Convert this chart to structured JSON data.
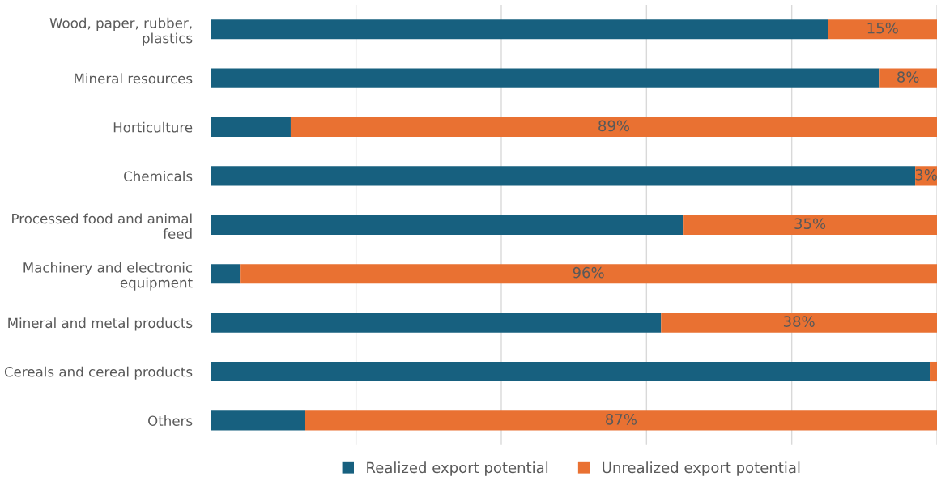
{
  "chart_data": {
    "type": "bar",
    "orientation": "horizontal",
    "stacked": true,
    "categories": [
      "Wood, paper, rubber,\nplastics",
      "Mineral resources",
      "Horticulture",
      "Chemicals",
      "Processed food and animal\nfeed",
      "Machinery and electronic\nequipment",
      "Mineral and metal products",
      "Cereals and cereal products",
      "Others"
    ],
    "series": [
      {
        "name": "Realized export potential",
        "color": "#17607f",
        "values": [
          85,
          92,
          11,
          97,
          65,
          4,
          62,
          99,
          13
        ]
      },
      {
        "name": "Unrealized export potential",
        "color": "#e97132",
        "values": [
          15,
          8,
          89,
          3,
          35,
          96,
          38,
          1,
          87
        ],
        "value_labels": [
          "15%",
          "8%",
          "89%",
          "3%",
          "35%",
          "96%",
          "38%",
          null,
          "87%"
        ]
      }
    ],
    "xlim": [
      0,
      100
    ],
    "xticks": [
      {
        "value": 0,
        "label": null
      },
      {
        "value": 20,
        "label": null
      },
      {
        "value": 40,
        "label": null
      },
      {
        "value": 60,
        "label": null
      },
      {
        "value": 80,
        "label": null
      },
      {
        "value": 100,
        "label": null
      }
    ],
    "tick_labels": "y",
    "grid": "x",
    "legend": "bottom"
  }
}
